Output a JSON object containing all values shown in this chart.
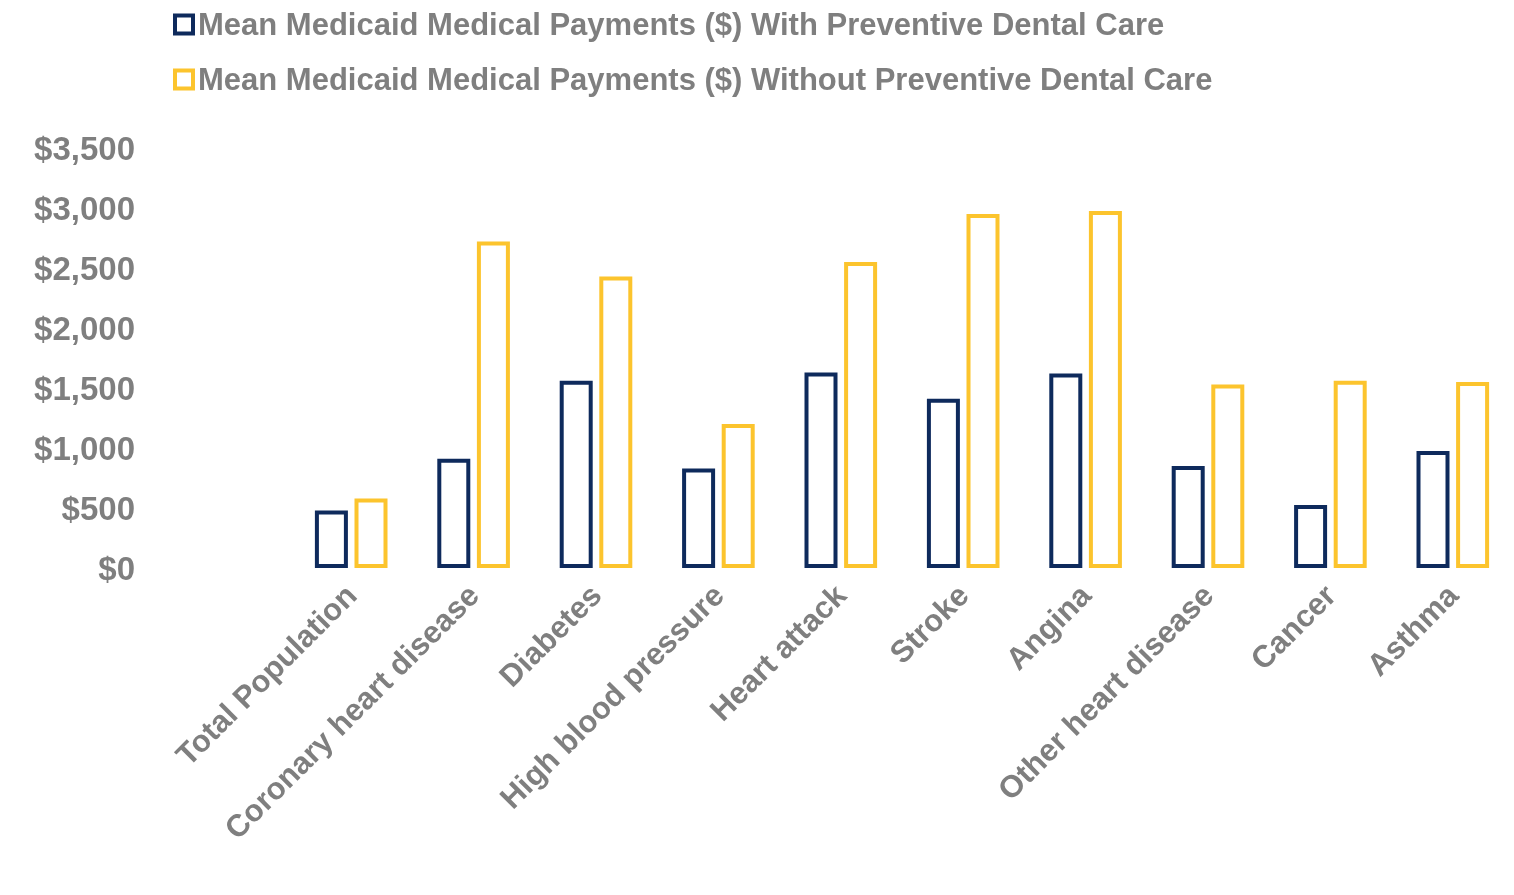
{
  "chart_data": {
    "type": "bar",
    "categories": [
      "Total Population",
      "Coronary heart disease",
      "Diabetes",
      "High blood pressure",
      "Heart attack",
      "Stroke",
      "Angina",
      "Other heart disease",
      "Cancer",
      "Asthma"
    ],
    "series": [
      {
        "name": "Mean Medicaid Medical Payments ($) With Preventive Dental Care",
        "color": "#0e2a5c",
        "values": [
          480,
          910,
          1560,
          830,
          1630,
          1410,
          1620,
          850,
          525,
          975
        ]
      },
      {
        "name": "Mean Medicaid Medical Payments ($) Without Preventive Dental Care",
        "color": "#fcc42d",
        "values": [
          580,
          2720,
          2430,
          1200,
          2550,
          2950,
          2975,
          1530,
          1560,
          1550
        ]
      }
    ],
    "ylim": [
      0,
      3500
    ],
    "yticks": [
      {
        "value": 0,
        "label": "$0"
      },
      {
        "value": 500,
        "label": "$500"
      },
      {
        "value": 1000,
        "label": "$1,000"
      },
      {
        "value": 1500,
        "label": "$1,500"
      },
      {
        "value": 2000,
        "label": "$2,000"
      },
      {
        "value": 2500,
        "label": "$2,500"
      },
      {
        "value": 3000,
        "label": "$3,000"
      },
      {
        "value": 3500,
        "label": "$3,500"
      }
    ],
    "grid": false,
    "legend": "top left"
  }
}
